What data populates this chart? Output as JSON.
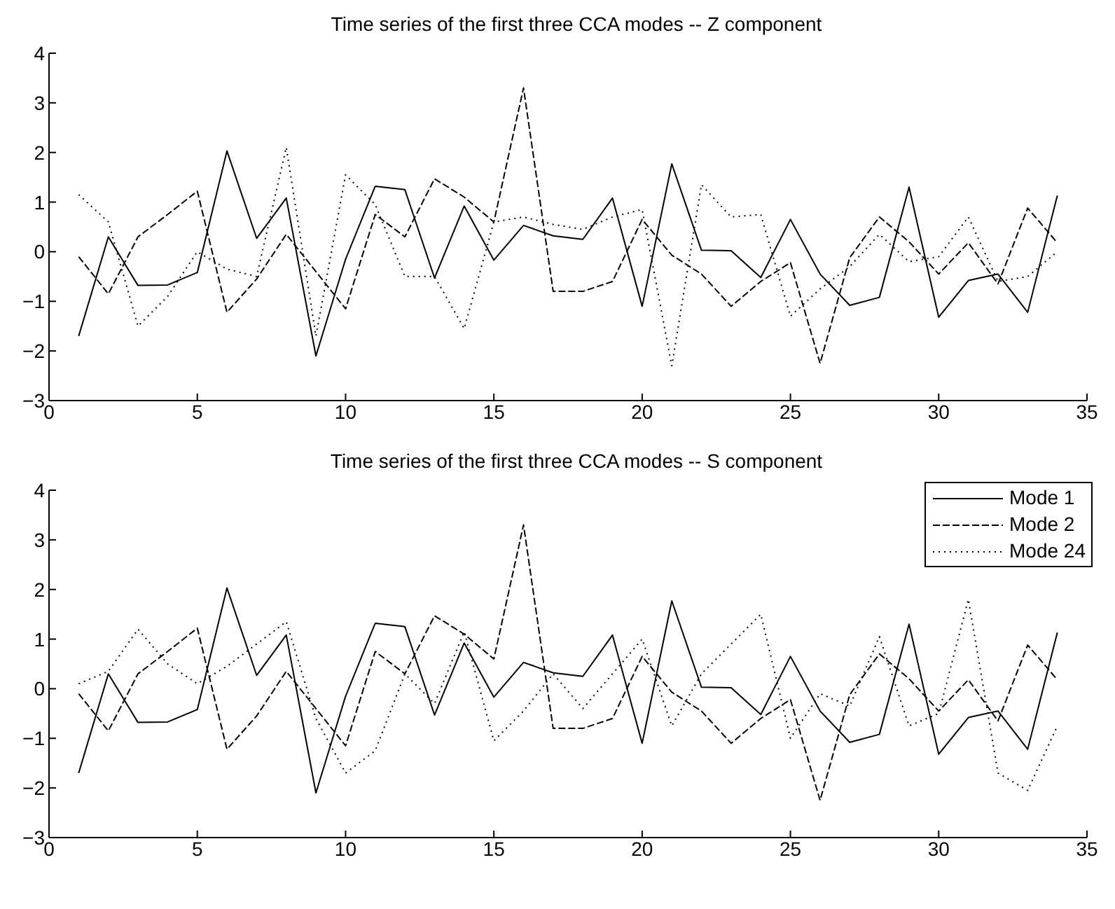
{
  "chart_data": [
    {
      "type": "line",
      "title": "Time series of the first three CCA modes -- Z component",
      "x": [
        1,
        2,
        3,
        4,
        5,
        6,
        7,
        8,
        9,
        10,
        11,
        12,
        13,
        14,
        15,
        16,
        17,
        18,
        19,
        20,
        21,
        22,
        23,
        24,
        25,
        26,
        27,
        28,
        29,
        30,
        31,
        32,
        33,
        34
      ],
      "xlim": [
        0,
        35
      ],
      "xticks": [
        0,
        5,
        10,
        15,
        20,
        25,
        30,
        35
      ],
      "ylim": [
        -3,
        4
      ],
      "yticks": [
        -3,
        -2,
        -1,
        0,
        1,
        2,
        3,
        4
      ],
      "grid": false,
      "legend": false,
      "marker": "none",
      "series": [
        {
          "color": "#000000",
          "line_style": "solid",
          "values": [
            -1.7,
            0.3,
            -0.68,
            -0.67,
            -0.42,
            2.03,
            0.27,
            1.08,
            -2.1,
            -0.15,
            1.32,
            1.25,
            -0.53,
            0.92,
            -0.17,
            0.53,
            0.32,
            0.25,
            1.08,
            -1.1,
            1.77,
            0.03,
            0.02,
            -0.52,
            0.65,
            -0.45,
            -1.08,
            -0.92,
            1.3,
            -1.32,
            -0.58,
            -0.45,
            -1.22,
            1.13
          ]
        },
        {
          "color": "#000000",
          "line_style": "dashed",
          "values": [
            -0.1,
            -0.85,
            0.3,
            0.75,
            1.22,
            -1.22,
            -0.55,
            0.35,
            -0.4,
            -1.15,
            0.75,
            0.3,
            1.47,
            1.1,
            0.6,
            3.3,
            -0.8,
            -0.8,
            -0.6,
            0.65,
            -0.07,
            -0.45,
            -1.1,
            -0.6,
            -0.22,
            -2.25,
            -0.12,
            0.7,
            0.2,
            -0.45,
            0.18,
            -0.65,
            0.88,
            0.18
          ]
        },
        {
          "color": "#000000",
          "line_style": "dotted",
          "values": [
            1.15,
            0.6,
            -1.5,
            -0.9,
            0.0,
            -0.35,
            -0.5,
            2.1,
            -1.7,
            1.55,
            0.95,
            -0.5,
            -0.5,
            -1.55,
            0.6,
            0.7,
            0.55,
            0.45,
            0.7,
            0.85,
            -2.3,
            1.35,
            0.7,
            0.75,
            -1.3,
            -0.75,
            -0.3,
            0.35,
            -0.2,
            -0.1,
            0.7,
            -0.6,
            -0.5,
            0.0
          ]
        }
      ]
    },
    {
      "type": "line",
      "title": "Time series of the first three CCA modes -- S component",
      "x": [
        1,
        2,
        3,
        4,
        5,
        6,
        7,
        8,
        9,
        10,
        11,
        12,
        13,
        14,
        15,
        16,
        17,
        18,
        19,
        20,
        21,
        22,
        23,
        24,
        25,
        26,
        27,
        28,
        29,
        30,
        31,
        32,
        33,
        34
      ],
      "xlim": [
        0,
        35
      ],
      "xticks": [
        0,
        5,
        10,
        15,
        20,
        25,
        30,
        35
      ],
      "ylim": [
        -3,
        4
      ],
      "yticks": [
        -3,
        -2,
        -1,
        0,
        1,
        2,
        3,
        4
      ],
      "grid": false,
      "legend": "top right",
      "marker": "none",
      "series": [
        {
          "name": "Mode 1",
          "color": "#000000",
          "line_style": "solid",
          "values": [
            -1.7,
            0.3,
            -0.68,
            -0.67,
            -0.42,
            2.03,
            0.27,
            1.08,
            -2.1,
            -0.15,
            1.32,
            1.25,
            -0.53,
            0.92,
            -0.17,
            0.53,
            0.32,
            0.25,
            1.08,
            -1.1,
            1.77,
            0.03,
            0.02,
            -0.52,
            0.65,
            -0.45,
            -1.08,
            -0.92,
            1.3,
            -1.32,
            -0.58,
            -0.45,
            -1.22,
            1.13
          ]
        },
        {
          "name": "Mode 2",
          "color": "#000000",
          "line_style": "dashed",
          "values": [
            -0.1,
            -0.85,
            0.3,
            0.75,
            1.22,
            -1.22,
            -0.55,
            0.35,
            -0.4,
            -1.15,
            0.75,
            0.3,
            1.47,
            1.1,
            0.6,
            3.3,
            -0.8,
            -0.8,
            -0.6,
            0.65,
            -0.07,
            -0.45,
            -1.1,
            -0.6,
            -0.22,
            -2.25,
            -0.12,
            0.7,
            0.2,
            -0.45,
            0.18,
            -0.65,
            0.88,
            0.18
          ]
        },
        {
          "name": "Mode 24",
          "color": "#000000",
          "line_style": "dotted",
          "values": [
            0.1,
            0.35,
            1.2,
            0.5,
            0.1,
            0.45,
            0.9,
            1.35,
            -0.6,
            -1.7,
            -1.25,
            0.3,
            -0.3,
            1.15,
            -1.05,
            -0.45,
            0.3,
            -0.4,
            0.3,
            1.0,
            -0.75,
            0.3,
            0.9,
            1.5,
            -1.0,
            -0.1,
            -0.35,
            1.05,
            -0.75,
            -0.5,
            1.8,
            -1.7,
            -2.05,
            -0.75
          ]
        }
      ]
    }
  ]
}
